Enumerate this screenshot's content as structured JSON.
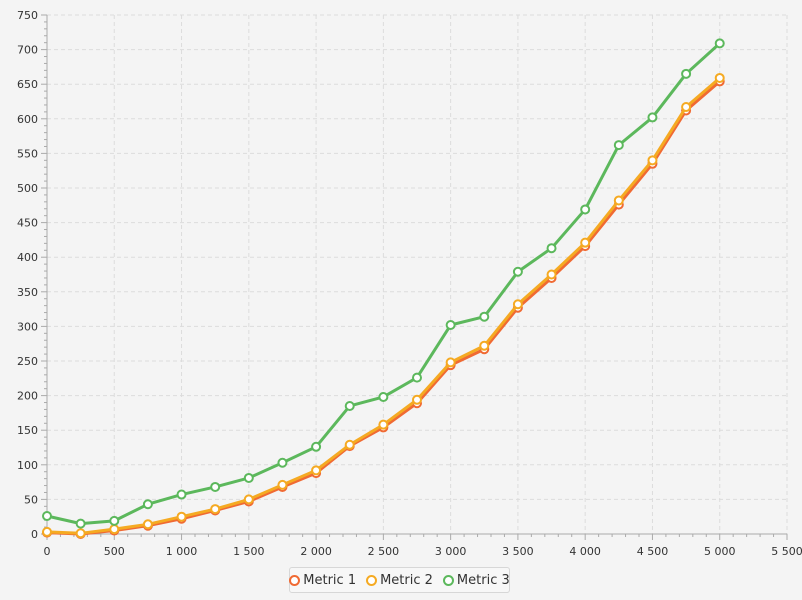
{
  "chart_data": {
    "type": "line",
    "x": [
      0,
      250,
      500,
      750,
      1000,
      1250,
      1500,
      1750,
      2000,
      2250,
      2500,
      2750,
      3000,
      3250,
      3500,
      3750,
      4000,
      4250,
      4500,
      4750,
      5000
    ],
    "series": [
      {
        "name": "Metric 1",
        "color": "#f06a33",
        "values": [
          2,
          0,
          5,
          12,
          22,
          34,
          47,
          68,
          88,
          127,
          154,
          189,
          244,
          267,
          327,
          370,
          416,
          476,
          535,
          612,
          654
        ]
      },
      {
        "name": "Metric 2",
        "color": "#f5aa22",
        "values": [
          3,
          1,
          7,
          14,
          25,
          36,
          50,
          71,
          92,
          129,
          158,
          194,
          248,
          272,
          332,
          375,
          421,
          482,
          540,
          617,
          659
        ]
      },
      {
        "name": "Metric 3",
        "color": "#5cb85c",
        "values": [
          26,
          15,
          19,
          43,
          57,
          68,
          81,
          103,
          126,
          185,
          198,
          226,
          302,
          314,
          379,
          413,
          469,
          562,
          602,
          665,
          709
        ]
      }
    ],
    "xlim": [
      0,
      5500
    ],
    "ylim": [
      0,
      750
    ],
    "x_ticks": [
      0,
      500,
      1000,
      1500,
      2000,
      2500,
      3000,
      3500,
      4000,
      4500,
      5000,
      5500
    ],
    "x_tick_labels": [
      "0",
      "500",
      "1 000",
      "1 500",
      "2 000",
      "2 500",
      "3 000",
      "3 500",
      "4 000",
      "4 500",
      "5 000",
      "5 500"
    ],
    "y_ticks": [
      0,
      50,
      100,
      150,
      200,
      250,
      300,
      350,
      400,
      450,
      500,
      550,
      600,
      650,
      700,
      750
    ],
    "y_tick_labels": [
      "0",
      "50",
      "100",
      "150",
      "200",
      "250",
      "300",
      "350",
      "400",
      "450",
      "500",
      "550",
      "600",
      "650",
      "700",
      "750"
    ],
    "xlabel": "",
    "ylabel": "",
    "grid": true,
    "legend": "bottom-center"
  }
}
